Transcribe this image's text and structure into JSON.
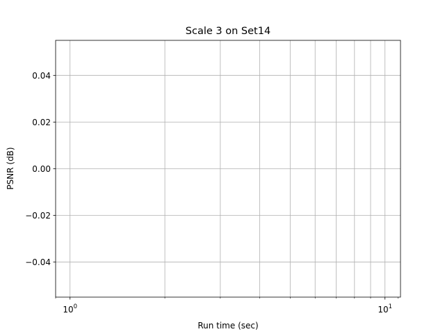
{
  "chart_data": {
    "type": "scatter",
    "title": "Scale 3 on Set14",
    "xlabel": "Run time (sec)",
    "ylabel": "PSNR (dB)",
    "xscale": "log",
    "xlim": [
      0.9,
      11.2
    ],
    "ylim": [
      -0.055,
      0.055
    ],
    "grid": true,
    "legend": "none",
    "x_major_ticks": [
      {
        "value": 1,
        "base": "10",
        "exp": "0"
      },
      {
        "value": 10,
        "base": "10",
        "exp": "1"
      }
    ],
    "x_minor_ticks": [
      2,
      3,
      4,
      5,
      6,
      7,
      8,
      9
    ],
    "y_ticks": [
      {
        "value": 0.04,
        "label": "0.04"
      },
      {
        "value": 0.02,
        "label": "0.02"
      },
      {
        "value": 0.0,
        "label": "0.00"
      },
      {
        "value": -0.02,
        "label": "−0.02"
      },
      {
        "value": -0.04,
        "label": "−0.04"
      }
    ],
    "series": [],
    "colors": {
      "grid": "#b0b0b0",
      "axis": "#000000",
      "background": "#ffffff"
    }
  }
}
